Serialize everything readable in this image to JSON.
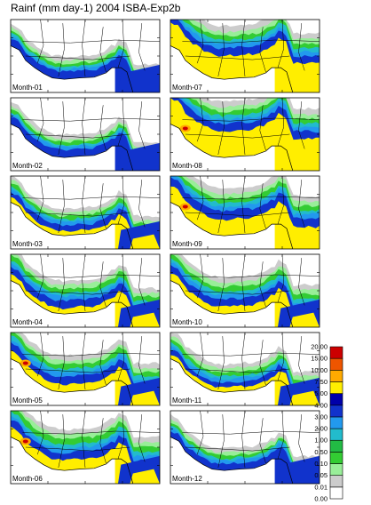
{
  "title": "Rainf (mm day-1) 2004 ISBA-Exp2b",
  "chart_data": {
    "type": "heatmap",
    "title": "Rainf (mm day-1) 2004 ISBA-Exp2b",
    "panels": [
      {
        "label": "Month-01",
        "month": 1
      },
      {
        "label": "Month-02",
        "month": 2
      },
      {
        "label": "Month-03",
        "month": 3
      },
      {
        "label": "Month-04",
        "month": 4
      },
      {
        "label": "Month-05",
        "month": 5
      },
      {
        "label": "Month-06",
        "month": 6
      },
      {
        "label": "Month-07",
        "month": 7
      },
      {
        "label": "Month-08",
        "month": 8
      },
      {
        "label": "Month-09",
        "month": 9
      },
      {
        "label": "Month-10",
        "month": 10
      },
      {
        "label": "Month-11",
        "month": 11
      },
      {
        "label": "Month-12",
        "month": 12
      }
    ],
    "colorbar": {
      "levels": [
        "0.00",
        "0.01",
        "0.05",
        "0.10",
        "0.50",
        "1.00",
        "2.00",
        "3.00",
        "4.00",
        "5.00",
        "7.50",
        "10.00",
        "15.00",
        "20.00"
      ],
      "colors": [
        "#ffffff",
        "#cccccc",
        "#99ee99",
        "#33cc33",
        "#22bb44",
        "#22bbcc",
        "#2299ee",
        "#1133cc",
        "#0000aa",
        "#ffee00",
        "#ffaa00",
        "#ee5500",
        "#cc0000"
      ]
    }
  }
}
